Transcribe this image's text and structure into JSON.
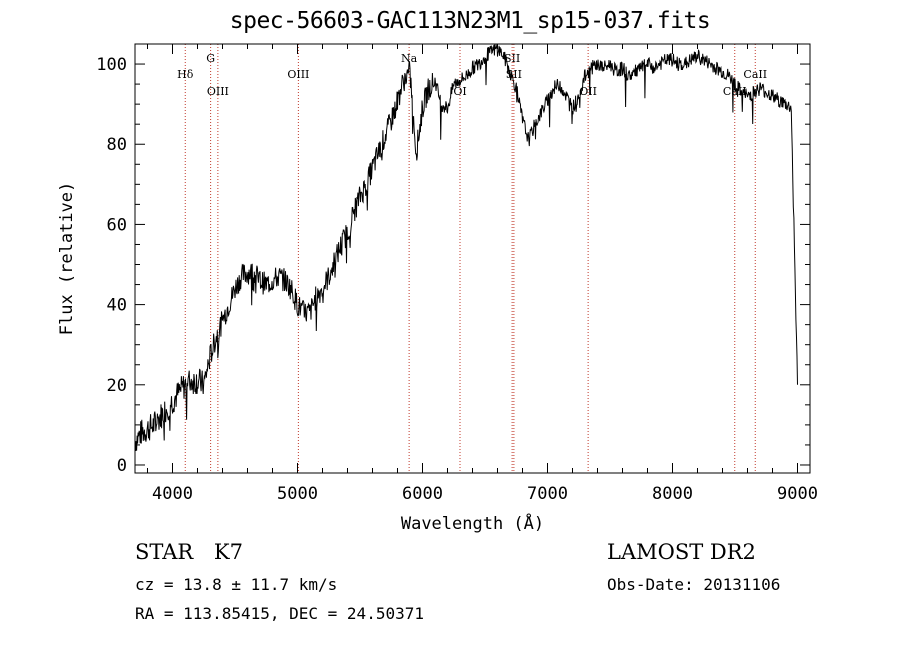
{
  "chart_data": {
    "type": "line",
    "title": "spec-56603-GAC113N23M1_sp15-037.fits",
    "xlabel": "Wavelength (Å)",
    "ylabel": "Flux (relative)",
    "xlim": [
      3700,
      9100
    ],
    "ylim": [
      -2,
      105
    ],
    "x_ticks": [
      4000,
      5000,
      6000,
      7000,
      8000,
      9000
    ],
    "y_ticks": [
      0,
      20,
      40,
      60,
      80,
      100
    ],
    "grid": false,
    "line_color": "#000000",
    "marker_color": "#c0392b",
    "series": [
      {
        "x": [
          3700,
          3750,
          3800,
          3850,
          3900,
          3950,
          4000,
          4050,
          4100,
          4150,
          4200,
          4250,
          4300,
          4350,
          4400,
          4450,
          4500,
          4550,
          4600,
          4650,
          4700,
          4750,
          4800,
          4850,
          4900,
          4950,
          5000,
          5050,
          5100,
          5150,
          5200,
          5250,
          5300,
          5350,
          5400,
          5450,
          5500,
          5550,
          5600,
          5650,
          5700,
          5750,
          5800,
          5850,
          5900,
          5950,
          6000,
          6050,
          6100,
          6150,
          6200,
          6250,
          6300,
          6350,
          6400,
          6450,
          6500,
          6550,
          6600,
          6650,
          6700,
          6750,
          6800,
          6850,
          6900,
          6950,
          7000,
          7050,
          7100,
          7150,
          7200,
          7250,
          7300,
          7350,
          7400,
          7450,
          7500,
          7550,
          7600,
          7650,
          7700,
          7750,
          7800,
          7850,
          7900,
          7950,
          8000,
          8050,
          8100,
          8150,
          8200,
          8250,
          8300,
          8350,
          8400,
          8450,
          8500,
          8550,
          8600,
          8650,
          8700,
          8750,
          8800,
          8850,
          8900,
          8950,
          9000
        ],
        "y": [
          6,
          8,
          9,
          10,
          12,
          14,
          16,
          18,
          20,
          21,
          21,
          20,
          27,
          32,
          36,
          40,
          44,
          47,
          48,
          48,
          46,
          45,
          46,
          47,
          46,
          44,
          40,
          38,
          38,
          42,
          44,
          47,
          51,
          55,
          58,
          63,
          67,
          70,
          74,
          78,
          82,
          86,
          91,
          96,
          98,
          78,
          89,
          94,
          96,
          90,
          89,
          95,
          96,
          97,
          99,
          100,
          102,
          103,
          104,
          102,
          98,
          94,
          86,
          81,
          85,
          88,
          91,
          94,
          95,
          92,
          89,
          92,
          97,
          99,
          100,
          99,
          100,
          98,
          99,
          97,
          98,
          99,
          100,
          99,
          100,
          101,
          101,
          100,
          100,
          101,
          102,
          101,
          100,
          99,
          98,
          97,
          95,
          93,
          92,
          93,
          94,
          93,
          92,
          91,
          90,
          89,
          20
        ]
      }
    ],
    "lines": [
      {
        "label": "Hδ",
        "x": 4102,
        "pos": "top"
      },
      {
        "label": "G",
        "x": 4305,
        "pos": "upper"
      },
      {
        "label": "OIII",
        "x": 4363,
        "pos": "lower"
      },
      {
        "label": "OIII",
        "x": 5007,
        "pos": "top"
      },
      {
        "label": "Na",
        "x": 5893,
        "pos": "upper"
      },
      {
        "label": "OI",
        "x": 6300,
        "pos": "lower"
      },
      {
        "label": "SII",
        "x": 6717,
        "pos": "upper"
      },
      {
        "label": "SII",
        "x": 6731,
        "pos": "top"
      },
      {
        "label": "OII",
        "x": 7325,
        "pos": "lower"
      },
      {
        "label": "CaII",
        "x": 8498,
        "pos": "lower"
      },
      {
        "label": "CaII",
        "x": 8662,
        "pos": "top"
      }
    ]
  },
  "info": {
    "object_type": "STAR",
    "subclass": "K7",
    "survey": "LAMOST DR2",
    "cz": "cz = 13.8 ± 11.7 km/s",
    "obs_date": "Obs-Date: 20131106",
    "radec": "RA = 113.85415, DEC =  24.50371"
  }
}
